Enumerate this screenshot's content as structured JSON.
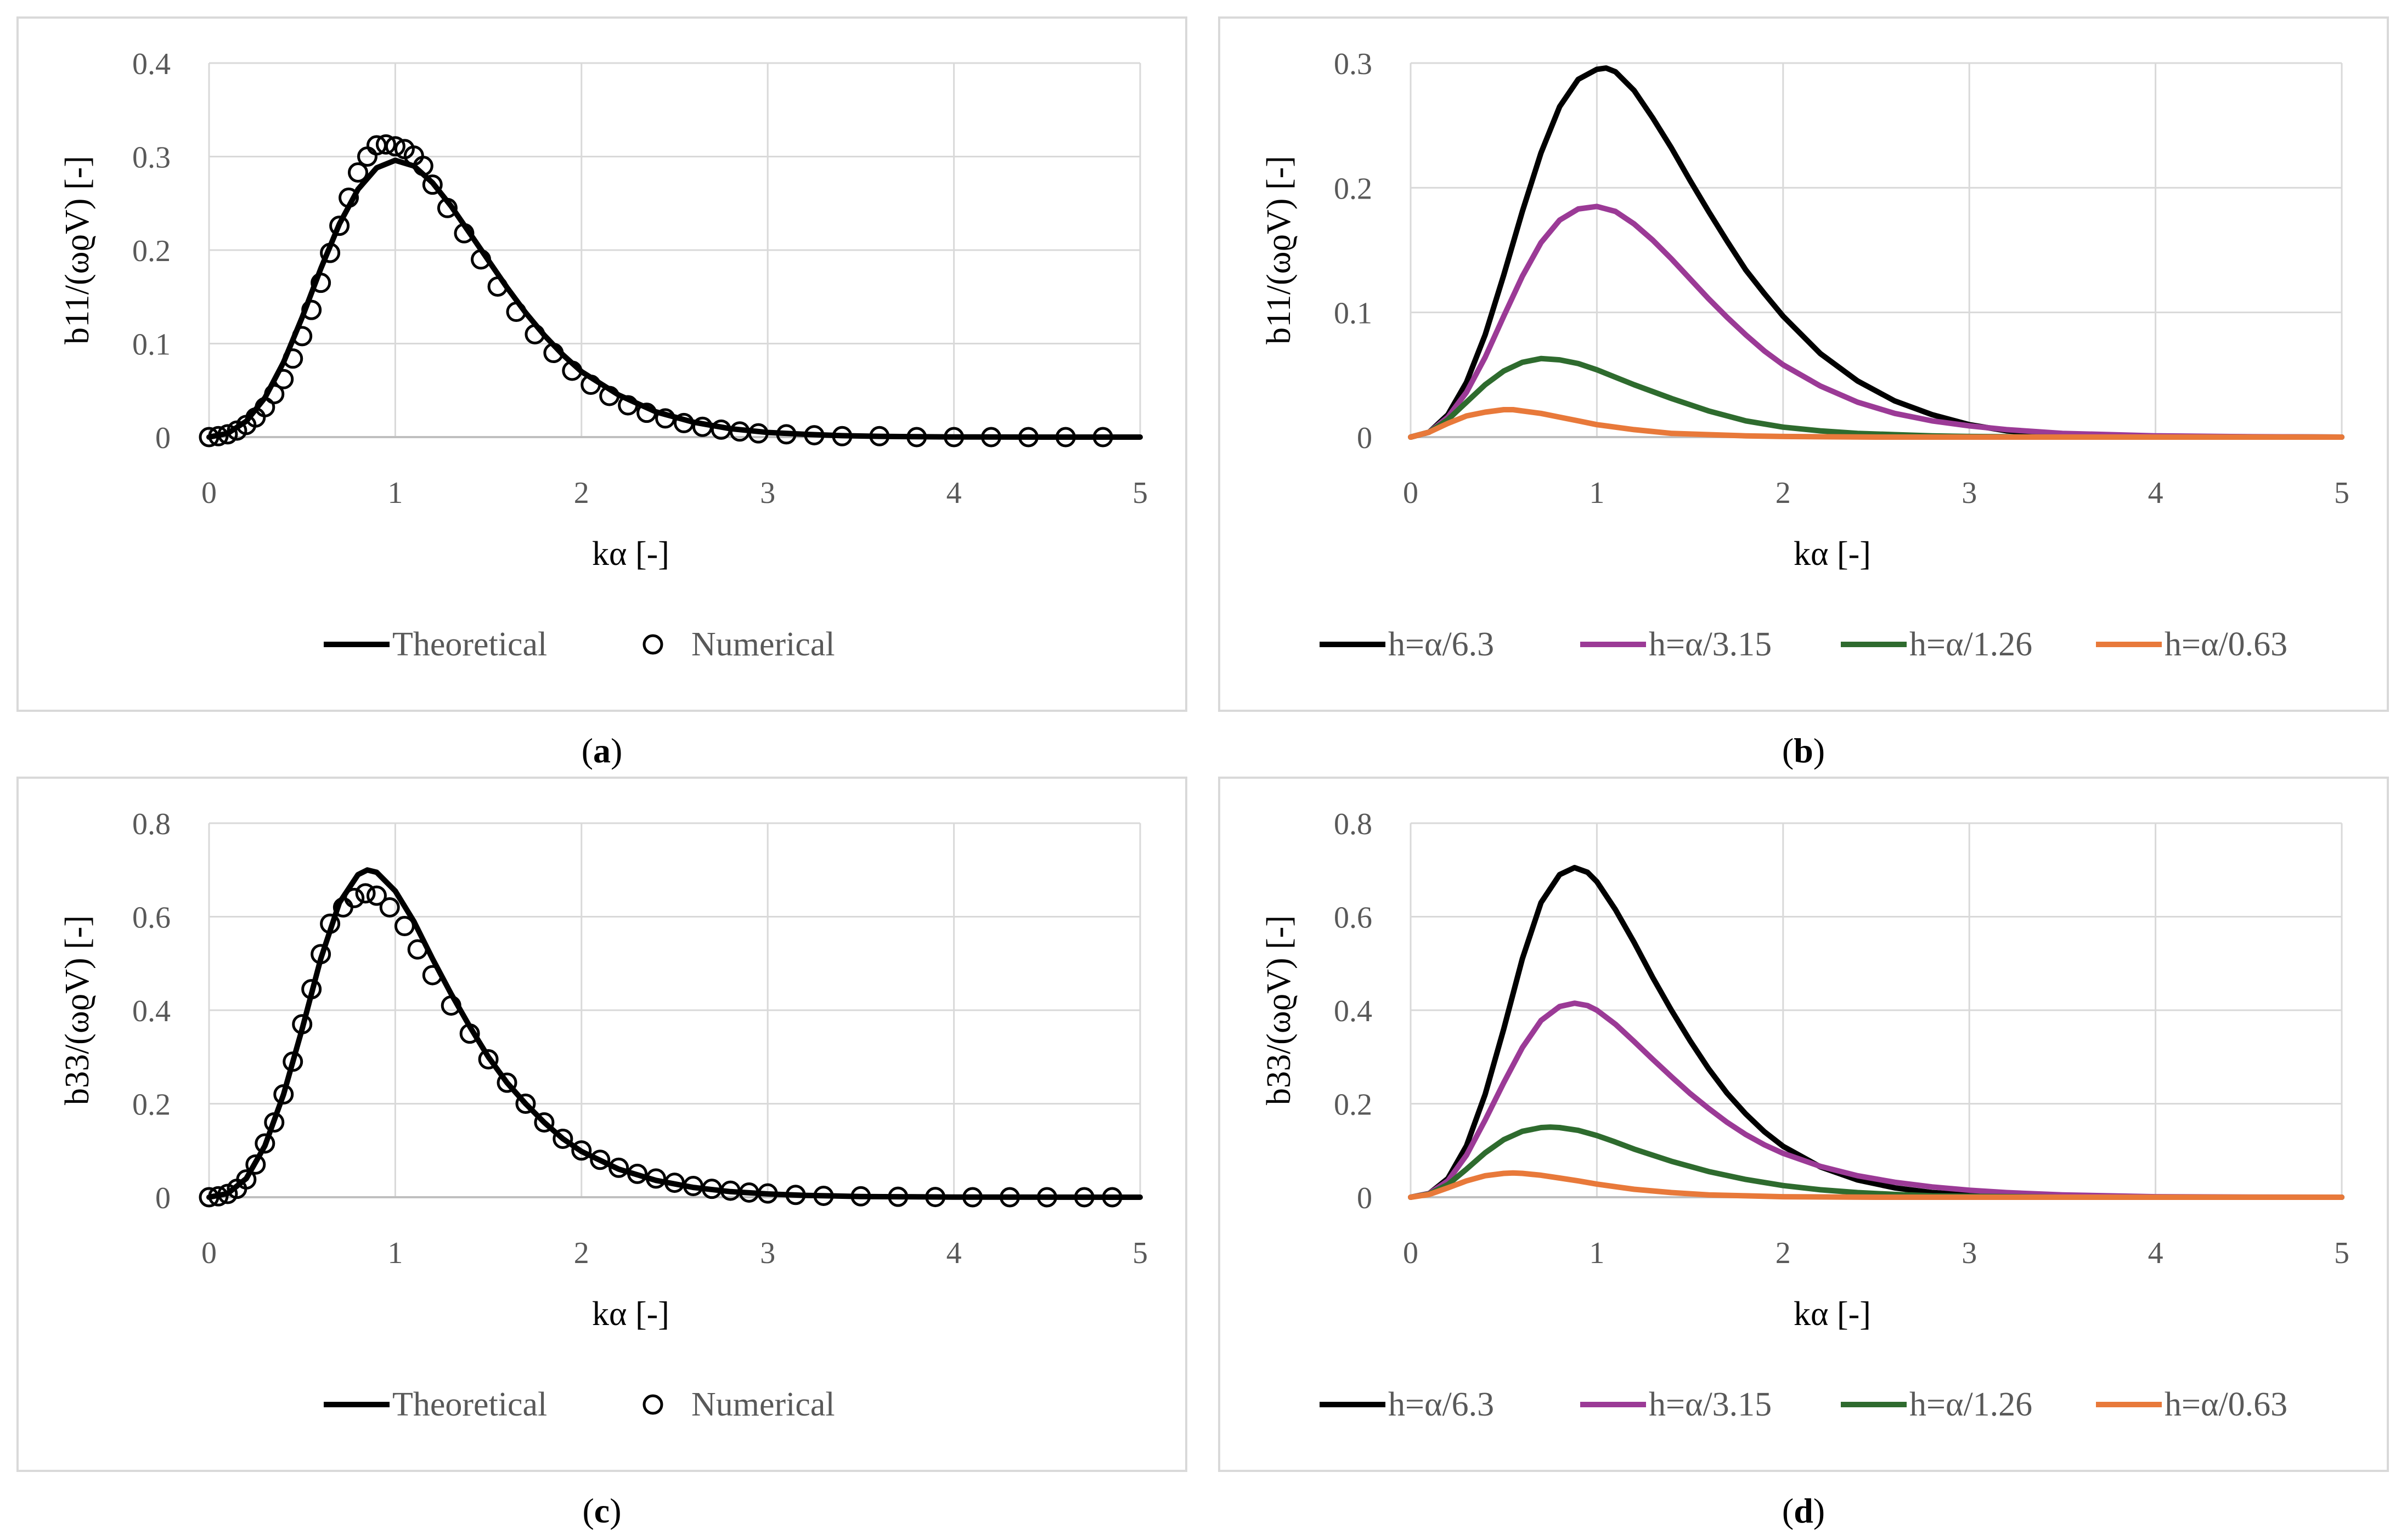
{
  "colors": {
    "black": "#000000",
    "purple": "#9b3a96",
    "green": "#2e6b2e",
    "orange": "#e8793a",
    "grid": "#d9d9d9",
    "frame": "#d9d9d9"
  },
  "chart_data": [
    {
      "id": "a",
      "type": "line",
      "caption_open": "(",
      "caption_letter": "a",
      "caption_close": ")",
      "xlabel": "kα [-]",
      "ylabel": "b11/(ωϱV) [-]",
      "xlim": [
        0,
        5
      ],
      "ylim": [
        0,
        0.4
      ],
      "xticks": [
        "0",
        "1",
        "2",
        "3",
        "4",
        "5"
      ],
      "yticks": [
        "0",
        "0.1",
        "0.2",
        "0.3",
        "0.4"
      ],
      "ytick_values": [
        0,
        0.1,
        0.2,
        0.3,
        0.4
      ],
      "legend": [
        "Theoretical",
        "Numerical"
      ],
      "series": [
        {
          "name": "Theoretical",
          "style": "line",
          "color": "#000000",
          "x": [
            0,
            0.1,
            0.2,
            0.3,
            0.4,
            0.5,
            0.6,
            0.7,
            0.8,
            0.9,
            1.0,
            1.1,
            1.2,
            1.3,
            1.4,
            1.5,
            1.6,
            1.7,
            1.8,
            1.9,
            2.0,
            2.2,
            2.4,
            2.6,
            2.8,
            3.0,
            3.2,
            3.4,
            3.6,
            3.8,
            4.0,
            4.5,
            5.0
          ],
          "y": [
            0,
            0.004,
            0.017,
            0.042,
            0.08,
            0.128,
            0.18,
            0.228,
            0.265,
            0.288,
            0.296,
            0.29,
            0.272,
            0.247,
            0.218,
            0.189,
            0.16,
            0.133,
            0.109,
            0.088,
            0.07,
            0.045,
            0.027,
            0.016,
            0.009,
            0.005,
            0.003,
            0.0015,
            0.0008,
            0.0004,
            0.0002,
            0,
            0
          ]
        },
        {
          "name": "Numerical",
          "style": "markers",
          "color": "#000000",
          "x": [
            0.0,
            0.05,
            0.1,
            0.15,
            0.2,
            0.25,
            0.3,
            0.35,
            0.4,
            0.45,
            0.5,
            0.55,
            0.6,
            0.65,
            0.7,
            0.75,
            0.8,
            0.85,
            0.9,
            0.95,
            1.0,
            1.05,
            1.1,
            1.15,
            1.2,
            1.28,
            1.37,
            1.46,
            1.55,
            1.65,
            1.75,
            1.85,
            1.95,
            2.05,
            2.15,
            2.25,
            2.35,
            2.45,
            2.55,
            2.65,
            2.75,
            2.85,
            2.95,
            3.1,
            3.25,
            3.4,
            3.6,
            3.8,
            4.0,
            4.2,
            4.4,
            4.6,
            4.8
          ],
          "y": [
            0.0,
            0.001,
            0.003,
            0.007,
            0.013,
            0.021,
            0.032,
            0.046,
            0.062,
            0.084,
            0.108,
            0.136,
            0.165,
            0.197,
            0.226,
            0.256,
            0.283,
            0.3,
            0.312,
            0.313,
            0.311,
            0.308,
            0.301,
            0.29,
            0.27,
            0.245,
            0.218,
            0.19,
            0.161,
            0.134,
            0.11,
            0.09,
            0.071,
            0.056,
            0.044,
            0.034,
            0.026,
            0.02,
            0.015,
            0.011,
            0.008,
            0.006,
            0.004,
            0.003,
            0.002,
            0.001,
            0.001,
            0,
            0,
            0,
            0,
            0,
            0
          ]
        }
      ]
    },
    {
      "id": "b",
      "type": "line",
      "caption_open": "(",
      "caption_letter": "b",
      "caption_close": ")",
      "xlabel": "kα [-]",
      "ylabel": "b11/(ωϱV) [-]",
      "xlim": [
        0,
        5
      ],
      "ylim": [
        0,
        0.3
      ],
      "xticks": [
        "0",
        "1",
        "2",
        "3",
        "4",
        "5"
      ],
      "yticks": [
        "0",
        "0.1",
        "0.2",
        "0.3"
      ],
      "ytick_values": [
        0,
        0.1,
        0.2,
        0.3
      ],
      "legend": [
        "h=α/6.3",
        "h=α/3.15",
        "h=α/1.26",
        "h=α/0.63"
      ],
      "series": [
        {
          "name": "h=α/6.3",
          "style": "line",
          "color": "#000000",
          "x": [
            0,
            0.1,
            0.2,
            0.3,
            0.4,
            0.5,
            0.6,
            0.7,
            0.8,
            0.9,
            1.0,
            1.05,
            1.1,
            1.2,
            1.3,
            1.4,
            1.5,
            1.6,
            1.7,
            1.8,
            1.9,
            2.0,
            2.2,
            2.4,
            2.6,
            2.8,
            3.0,
            3.2,
            3.5,
            4.0,
            5.0
          ],
          "y": [
            0,
            0.004,
            0.018,
            0.044,
            0.082,
            0.13,
            0.181,
            0.228,
            0.265,
            0.287,
            0.295,
            0.296,
            0.293,
            0.278,
            0.256,
            0.232,
            0.206,
            0.181,
            0.157,
            0.134,
            0.115,
            0.097,
            0.067,
            0.045,
            0.029,
            0.018,
            0.01,
            0.005,
            0.002,
            0.0005,
            0
          ]
        },
        {
          "name": "h=α/3.15",
          "style": "line",
          "color": "#9b3a96",
          "x": [
            0,
            0.1,
            0.2,
            0.3,
            0.4,
            0.5,
            0.6,
            0.7,
            0.8,
            0.9,
            1.0,
            1.1,
            1.2,
            1.3,
            1.4,
            1.5,
            1.6,
            1.7,
            1.8,
            1.9,
            2.0,
            2.2,
            2.4,
            2.6,
            2.8,
            3.0,
            3.2,
            3.5,
            4.0,
            4.5,
            5.0
          ],
          "y": [
            0,
            0.004,
            0.016,
            0.036,
            0.064,
            0.097,
            0.129,
            0.156,
            0.174,
            0.183,
            0.185,
            0.181,
            0.171,
            0.158,
            0.143,
            0.127,
            0.111,
            0.096,
            0.082,
            0.069,
            0.058,
            0.041,
            0.028,
            0.019,
            0.013,
            0.009,
            0.006,
            0.003,
            0.001,
            0.0003,
            0
          ]
        },
        {
          "name": "h=α/1.26",
          "style": "line",
          "color": "#2e6b2e",
          "x": [
            0,
            0.1,
            0.2,
            0.3,
            0.4,
            0.5,
            0.6,
            0.7,
            0.8,
            0.9,
            1.0,
            1.1,
            1.2,
            1.4,
            1.6,
            1.8,
            2.0,
            2.2,
            2.4,
            2.6,
            2.8,
            3.0,
            3.5,
            4.0,
            5.0
          ],
          "y": [
            0,
            0.004,
            0.014,
            0.028,
            0.042,
            0.053,
            0.06,
            0.063,
            0.062,
            0.059,
            0.054,
            0.048,
            0.042,
            0.031,
            0.021,
            0.013,
            0.008,
            0.005,
            0.003,
            0.002,
            0.001,
            0.0005,
            0,
            0,
            0
          ]
        },
        {
          "name": "h=α/0.63",
          "style": "line",
          "color": "#e8793a",
          "x": [
            0,
            0.1,
            0.2,
            0.3,
            0.4,
            0.5,
            0.55,
            0.6,
            0.7,
            0.8,
            0.9,
            1.0,
            1.2,
            1.4,
            1.6,
            1.8,
            2.0,
            2.5,
            3.0,
            4.0,
            5.0
          ],
          "y": [
            0,
            0.004,
            0.011,
            0.017,
            0.02,
            0.022,
            0.022,
            0.021,
            0.019,
            0.016,
            0.013,
            0.01,
            0.006,
            0.003,
            0.002,
            0.001,
            0.0005,
            0,
            0,
            0,
            0
          ]
        }
      ]
    },
    {
      "id": "c",
      "type": "line",
      "caption_open": "(",
      "caption_letter": "c",
      "caption_close": ")",
      "xlabel": "kα [-]",
      "ylabel": "b33/(ωϱV) [-]",
      "xlim": [
        0,
        5
      ],
      "ylim": [
        0,
        0.8
      ],
      "xticks": [
        "0",
        "1",
        "2",
        "3",
        "4",
        "5"
      ],
      "yticks": [
        "0",
        "0.2",
        "0.4",
        "0.6",
        "0.8"
      ],
      "ytick_values": [
        0,
        0.2,
        0.4,
        0.6,
        0.8
      ],
      "legend": [
        "Theoretical",
        "Numerical"
      ],
      "series": [
        {
          "name": "Theoretical",
          "style": "line",
          "color": "#000000",
          "x": [
            0,
            0.1,
            0.2,
            0.3,
            0.4,
            0.5,
            0.6,
            0.7,
            0.8,
            0.85,
            0.9,
            1.0,
            1.1,
            1.2,
            1.3,
            1.4,
            1.5,
            1.6,
            1.7,
            1.8,
            1.9,
            2.0,
            2.2,
            2.4,
            2.6,
            2.8,
            3.0,
            3.2,
            3.5,
            4.0,
            5.0
          ],
          "y": [
            0,
            0.008,
            0.04,
            0.11,
            0.22,
            0.36,
            0.51,
            0.63,
            0.69,
            0.7,
            0.695,
            0.655,
            0.59,
            0.51,
            0.435,
            0.365,
            0.3,
            0.245,
            0.2,
            0.16,
            0.125,
            0.098,
            0.06,
            0.036,
            0.021,
            0.012,
            0.007,
            0.004,
            0.0015,
            0.0003,
            0
          ]
        },
        {
          "name": "Numerical",
          "style": "markers",
          "color": "#000000",
          "x": [
            0.0,
            0.05,
            0.1,
            0.15,
            0.2,
            0.25,
            0.3,
            0.35,
            0.4,
            0.45,
            0.5,
            0.55,
            0.6,
            0.65,
            0.72,
            0.78,
            0.84,
            0.9,
            0.97,
            1.05,
            1.12,
            1.2,
            1.3,
            1.4,
            1.5,
            1.6,
            1.7,
            1.8,
            1.9,
            2.0,
            2.1,
            2.2,
            2.3,
            2.4,
            2.5,
            2.6,
            2.7,
            2.8,
            2.9,
            3.0,
            3.15,
            3.3,
            3.5,
            3.7,
            3.9,
            4.1,
            4.3,
            4.5,
            4.7,
            4.85
          ],
          "y": [
            0.0,
            0.002,
            0.007,
            0.018,
            0.038,
            0.07,
            0.115,
            0.16,
            0.22,
            0.29,
            0.37,
            0.445,
            0.52,
            0.585,
            0.62,
            0.64,
            0.65,
            0.645,
            0.62,
            0.58,
            0.53,
            0.475,
            0.41,
            0.35,
            0.295,
            0.245,
            0.2,
            0.16,
            0.125,
            0.1,
            0.08,
            0.063,
            0.05,
            0.04,
            0.031,
            0.024,
            0.018,
            0.014,
            0.01,
            0.008,
            0.005,
            0.003,
            0.002,
            0.001,
            0.0005,
            0,
            0,
            0,
            0,
            0
          ]
        }
      ]
    },
    {
      "id": "d",
      "type": "line",
      "caption_open": "(",
      "caption_letter": "d",
      "caption_close": ")",
      "xlabel": "kα [-]",
      "ylabel": "b33/(ωϱV) [-]",
      "xlim": [
        0,
        5
      ],
      "ylim": [
        0,
        0.8
      ],
      "xticks": [
        "0",
        "1",
        "2",
        "3",
        "4",
        "5"
      ],
      "yticks": [
        "0",
        "0.2",
        "0.4",
        "0.6",
        "0.8"
      ],
      "ytick_values": [
        0,
        0.2,
        0.4,
        0.6,
        0.8
      ],
      "legend": [
        "h=α/6.3",
        "h=α/3.15",
        "h=α/1.26",
        "h=α/0.63"
      ],
      "series": [
        {
          "name": "h=α/6.3",
          "style": "line",
          "color": "#000000",
          "x": [
            0,
            0.1,
            0.2,
            0.3,
            0.4,
            0.5,
            0.6,
            0.7,
            0.8,
            0.88,
            0.95,
            1.0,
            1.1,
            1.2,
            1.3,
            1.4,
            1.5,
            1.6,
            1.7,
            1.8,
            1.9,
            2.0,
            2.2,
            2.4,
            2.6,
            2.8,
            3.0,
            3.2,
            3.5,
            4.0,
            5.0
          ],
          "y": [
            0,
            0.008,
            0.04,
            0.11,
            0.22,
            0.36,
            0.51,
            0.63,
            0.69,
            0.705,
            0.695,
            0.675,
            0.615,
            0.545,
            0.47,
            0.4,
            0.335,
            0.275,
            0.222,
            0.178,
            0.14,
            0.109,
            0.065,
            0.037,
            0.02,
            0.01,
            0.005,
            0.002,
            0.0008,
            0.0001,
            0
          ]
        },
        {
          "name": "h=α/3.15",
          "style": "line",
          "color": "#9b3a96",
          "x": [
            0,
            0.1,
            0.2,
            0.3,
            0.4,
            0.5,
            0.6,
            0.7,
            0.8,
            0.88,
            0.95,
            1.0,
            1.1,
            1.2,
            1.3,
            1.4,
            1.5,
            1.6,
            1.7,
            1.8,
            1.9,
            2.0,
            2.2,
            2.4,
            2.6,
            2.8,
            3.0,
            3.2,
            3.5,
            4.0,
            4.5,
            5.0
          ],
          "y": [
            0,
            0.008,
            0.035,
            0.09,
            0.165,
            0.245,
            0.32,
            0.378,
            0.408,
            0.415,
            0.41,
            0.4,
            0.37,
            0.333,
            0.295,
            0.258,
            0.222,
            0.19,
            0.16,
            0.134,
            0.112,
            0.094,
            0.066,
            0.046,
            0.032,
            0.022,
            0.015,
            0.01,
            0.005,
            0.001,
            0.0003,
            0
          ]
        },
        {
          "name": "h=α/1.26",
          "style": "line",
          "color": "#2e6b2e",
          "x": [
            0,
            0.1,
            0.2,
            0.3,
            0.4,
            0.5,
            0.6,
            0.7,
            0.75,
            0.8,
            0.9,
            1.0,
            1.1,
            1.2,
            1.4,
            1.6,
            1.8,
            2.0,
            2.2,
            2.4,
            2.6,
            2.8,
            3.0,
            3.5,
            4.0,
            5.0
          ],
          "y": [
            0,
            0.007,
            0.027,
            0.06,
            0.095,
            0.123,
            0.141,
            0.149,
            0.15,
            0.149,
            0.143,
            0.132,
            0.118,
            0.103,
            0.077,
            0.055,
            0.038,
            0.025,
            0.016,
            0.01,
            0.006,
            0.003,
            0.002,
            0,
            0,
            0
          ]
        },
        {
          "name": "h=α/0.63",
          "style": "line",
          "color": "#e8793a",
          "x": [
            0,
            0.1,
            0.2,
            0.3,
            0.4,
            0.5,
            0.55,
            0.6,
            0.7,
            0.8,
            0.9,
            1.0,
            1.2,
            1.4,
            1.6,
            1.8,
            2.0,
            2.5,
            3.0,
            4.0,
            5.0
          ],
          "y": [
            0,
            0.006,
            0.02,
            0.035,
            0.046,
            0.051,
            0.052,
            0.051,
            0.047,
            0.041,
            0.035,
            0.028,
            0.017,
            0.01,
            0.005,
            0.003,
            0.001,
            0,
            0,
            0,
            0
          ]
        }
      ]
    }
  ]
}
